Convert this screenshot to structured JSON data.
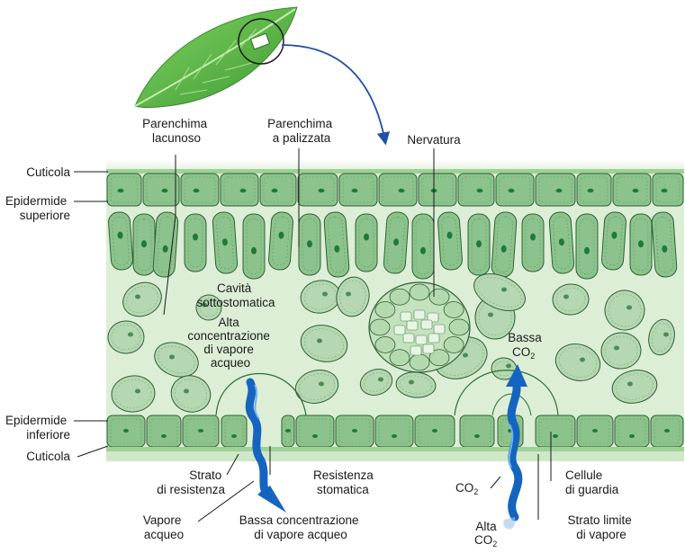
{
  "labels": {
    "parenchima_lacunoso": [
      "Parenchima",
      "lacunoso"
    ],
    "parenchima_palizzata": [
      "Parenchima",
      "a palizzata"
    ],
    "nervatura": "Nervatura",
    "cuticola_top": "Cuticola",
    "epidermide_superiore": [
      "Epidermide",
      "superiore"
    ],
    "cavita_sottostomatica": [
      "Cavità",
      "sottostomatica"
    ],
    "alta_concentrazione": [
      "Alta",
      "concentrazione",
      "di vapore",
      "acqueo"
    ],
    "bassa_co2": {
      "line1": "Bassa",
      "co": "CO",
      "sub": "2"
    },
    "epidermide_inferiore": [
      "Epidermide",
      "inferiore"
    ],
    "cuticola_bottom": "Cuticola",
    "strato_resistenza": [
      "Strato",
      "di resistenza"
    ],
    "resistenza_stomatica": [
      "Resistenza",
      "stomatica"
    ],
    "cellule_guardia": [
      "Cellule",
      "di guardia"
    ],
    "co2_mid": {
      "co": "CO",
      "sub": "2"
    },
    "vapore_acqueo": [
      "Vapore",
      "acqueo"
    ],
    "bassa_concentrazione": [
      "Bassa concentrazione",
      "di vapore acqueo"
    ],
    "alta_co2": {
      "line1": "Alta",
      "co": "CO",
      "sub": "2"
    },
    "strato_limite": [
      "Strato limite",
      "di vapore"
    ]
  },
  "colors": {
    "cell_fill": "#8cc38c",
    "cell_fill_light": "#b5d7b1",
    "cell_stroke": "#2f5f33",
    "tissue_bg": "#dcefd6",
    "chloroplast": "#1f7a3a",
    "arrow_blue": "#1565c0",
    "leaf_green": "#5fb845"
  }
}
